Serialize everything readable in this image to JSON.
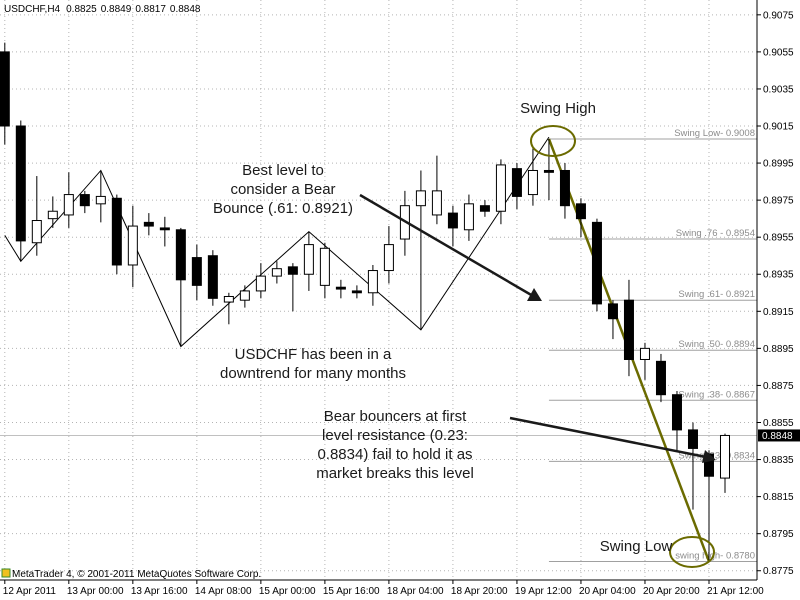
{
  "chart_data": {
    "type": "candlestick",
    "title": "USDCHF,H4",
    "header_values": [
      0.8825,
      0.8849,
      0.8817,
      0.8848
    ],
    "categories": [
      "12 Apr 2011",
      null,
      null,
      null,
      "13 Apr 00:00",
      null,
      null,
      null,
      "13 Apr 16:00",
      null,
      null,
      null,
      "14 Apr 08:00",
      null,
      null,
      null,
      "15 Apr 00:00",
      null,
      null,
      null,
      "15 Apr 16:00",
      null,
      null,
      null,
      "18 Apr 04:00",
      null,
      null,
      null,
      "18 Apr 20:00",
      null,
      null,
      null,
      "19 Apr 12:00",
      null,
      null,
      null,
      "20 Apr 04:00",
      null,
      null,
      null,
      "20 Apr 20:00",
      null,
      null,
      null,
      "21 Apr 12:00",
      null
    ],
    "open": [
      0.9055,
      0.9015,
      0.8952,
      0.8965,
      0.8967,
      0.8978,
      0.8973,
      0.8976,
      0.894,
      0.8963,
      0.896,
      0.8959,
      0.8944,
      0.8945,
      0.892,
      0.8921,
      0.8926,
      0.8934,
      0.8939,
      0.8935,
      0.8929,
      0.8928,
      0.8926,
      0.8925,
      0.8937,
      0.8954,
      0.8972,
      0.8967,
      0.8968,
      0.8959,
      0.8972,
      0.8969,
      0.8992,
      0.8978,
      0.8991,
      0.8991,
      0.8973,
      0.8963,
      0.8919,
      0.8921,
      0.8889,
      0.8888,
      0.887,
      0.8851,
      0.8838,
      0.8825
    ],
    "high": [
      0.906,
      0.9018,
      0.8988,
      0.8977,
      0.899,
      0.898,
      0.8991,
      0.8978,
      0.8972,
      0.8968,
      0.8966,
      0.896,
      0.8951,
      0.8948,
      0.8925,
      0.8929,
      0.8941,
      0.8942,
      0.8941,
      0.8958,
      0.8952,
      0.8932,
      0.8929,
      0.894,
      0.8961,
      0.898,
      0.8991,
      0.8999,
      0.8972,
      0.8978,
      0.8975,
      0.8997,
      0.8995,
      0.9003,
      0.9008,
      0.8995,
      0.8976,
      0.8965,
      0.8921,
      0.8932,
      0.8898,
      0.8892,
      0.8872,
      0.8855,
      0.884,
      0.8849
    ],
    "low": [
      0.9005,
      0.8942,
      0.8945,
      0.896,
      0.896,
      0.8968,
      0.8963,
      0.8935,
      0.8928,
      0.8956,
      0.895,
      0.8896,
      0.8921,
      0.8918,
      0.8908,
      0.8917,
      0.8922,
      0.893,
      0.8915,
      0.8926,
      0.8922,
      0.8922,
      0.8922,
      0.8918,
      0.893,
      0.8945,
      0.8905,
      0.8962,
      0.895,
      0.8953,
      0.8966,
      0.8962,
      0.897,
      0.8972,
      0.8975,
      0.8965,
      0.8955,
      0.8915,
      0.89,
      0.888,
      0.8878,
      0.8866,
      0.884,
      0.8808,
      0.878,
      0.8817
    ],
    "close": [
      0.9015,
      0.8953,
      0.8964,
      0.8969,
      0.8978,
      0.8972,
      0.8977,
      0.894,
      0.8961,
      0.8961,
      0.8959,
      0.8932,
      0.8929,
      0.8922,
      0.8923,
      0.8926,
      0.8934,
      0.8938,
      0.8935,
      0.8951,
      0.8949,
      0.8927,
      0.8925,
      0.8937,
      0.8951,
      0.8972,
      0.898,
      0.898,
      0.896,
      0.8973,
      0.8969,
      0.8994,
      0.8977,
      0.8991,
      0.899,
      0.8972,
      0.8965,
      0.8919,
      0.8911,
      0.8889,
      0.8895,
      0.887,
      0.8851,
      0.8841,
      0.8826,
      0.8848
    ],
    "xlim": [
      -0.3,
      47
    ],
    "ylim": [
      0.877,
      0.9083
    ],
    "yticks": [
      0.9075,
      0.9055,
      0.9035,
      0.9015,
      0.8995,
      0.8975,
      0.8955,
      0.8935,
      0.8915,
      0.8895,
      0.8875,
      0.8855,
      0.8835,
      0.8815,
      0.8795,
      0.8775
    ],
    "grid": true,
    "current_price": 0.8848,
    "zigzag": {
      "x": [
        0,
        1,
        6,
        11,
        19,
        26,
        34
      ],
      "values": [
        0.8956,
        0.8942,
        0.8991,
        0.8896,
        0.8958,
        0.8905,
        0.9009
      ]
    },
    "fib_levels": [
      {
        "label": "Swing Low-  0.9008",
        "value": 0.9008
      },
      {
        "label": "Swing .76 -  0.8954",
        "value": 0.8954
      },
      {
        "label": "Swing .61-  0.8921",
        "value": 0.8921
      },
      {
        "label": "Swing .50-  0.8894",
        "value": 0.8894
      },
      {
        "label": "Swing .38-  0.8867",
        "value": 0.8867
      },
      {
        "label": "Swing .23-  0.8834",
        "value": 0.8834
      },
      {
        "label": "swing high-  0.8780",
        "value": 0.878
      }
    ],
    "annotations": [
      {
        "lines": [
          "Swing High"
        ]
      },
      {
        "lines": [
          "Best level to",
          "consider a Bear",
          "Bounce (.61: 0.8921)"
        ]
      },
      {
        "lines": [
          "USDCHF has been in a",
          "downtrend for many months"
        ]
      },
      {
        "lines": [
          "Bear bouncers at first",
          "level resistance (0.23:",
          "0.8834) fail to hold it as",
          "market breaks this level"
        ]
      },
      {
        "lines": [
          "Swing Low"
        ]
      }
    ],
    "copyright": "MetaTrader 4, © 2001-2011 MetaQuotes Software Corp."
  }
}
